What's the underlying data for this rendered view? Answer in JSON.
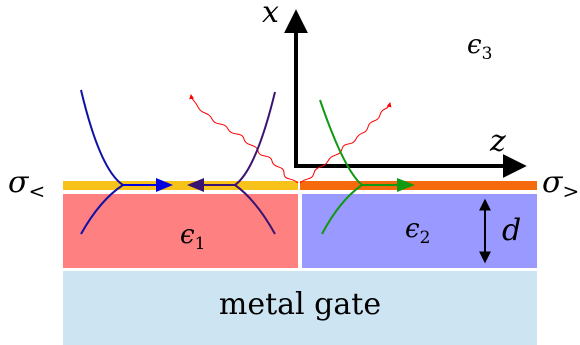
{
  "labels": {
    "axis_x": "x",
    "axis_z": "z",
    "eps3": "ϵ",
    "eps3_sub": "3",
    "eps1": "ϵ",
    "eps1_sub": "1",
    "eps2": "ϵ",
    "eps2_sub": "2",
    "sigma_left": "σ",
    "sigma_left_sub": "<",
    "sigma_right": "σ",
    "sigma_right_sub": ">",
    "thickness": "d",
    "gate": "metal gate"
  },
  "colors": {
    "left_sheet": "#f7c21a",
    "right_sheet": "#f46a0c",
    "left_dielectric": "#ff8080",
    "right_dielectric": "#9999ff",
    "gate": "#cde4f2",
    "wave_red": "#ff0000",
    "curve_blue": "#1010a8",
    "curve_purple": "#3a1470",
    "curve_green": "#119911",
    "arrow_blue": "#0000e0",
    "arrow_purple": "#3a1470",
    "arrow_green": "#119911"
  }
}
